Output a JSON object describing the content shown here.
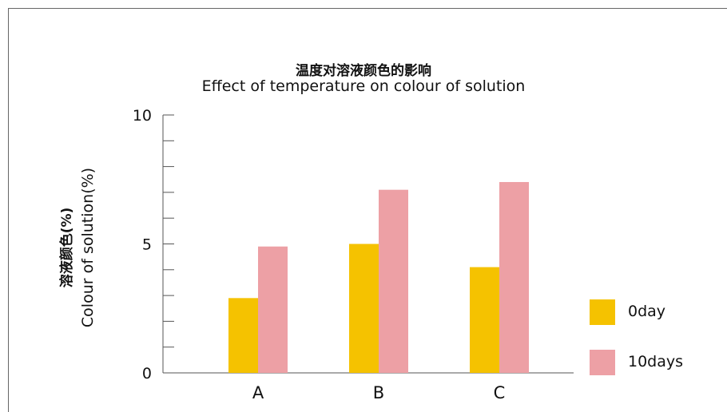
{
  "chart_data": {
    "type": "bar",
    "title": "温度对溶液颜色的影响",
    "subtitle": "Effect of temperature on colour of solution",
    "ylabel_zh": "溶液颜色(%)",
    "ylabel": "Colour of solution(%)",
    "xlabel": "",
    "categories": [
      "A",
      "B",
      "C"
    ],
    "series": [
      {
        "name": "0day",
        "color": "#f5c200",
        "values": [
          2.9,
          5.0,
          4.1
        ]
      },
      {
        "name": "10days",
        "color": "#eda0a5",
        "values": [
          4.9,
          7.1,
          7.4
        ]
      }
    ],
    "ylim": [
      0,
      10
    ],
    "yticks": [
      0,
      5,
      10
    ],
    "y_minor_step": 1,
    "grid": false,
    "legend": "right"
  }
}
